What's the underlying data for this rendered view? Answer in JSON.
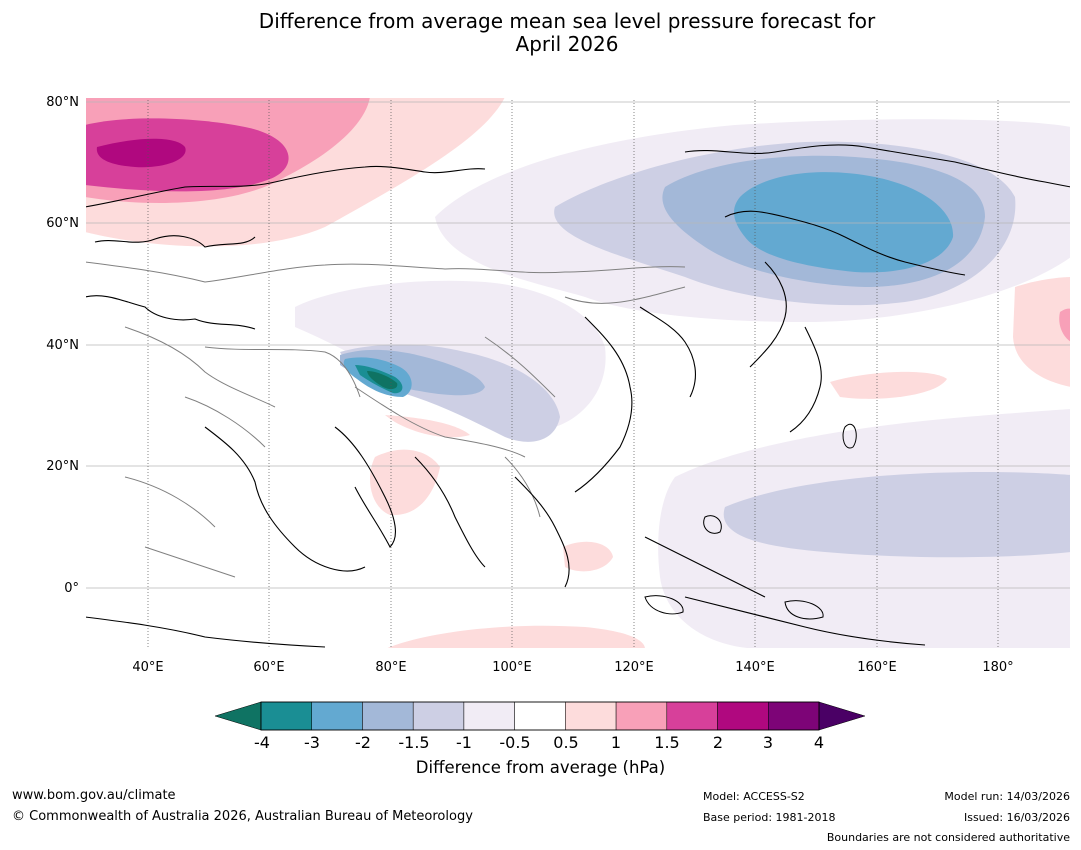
{
  "title_line1": "Difference from average mean sea level pressure forecast for",
  "title_line2": "April 2026",
  "lat_labels": [
    "80°N",
    "60°N",
    "40°N",
    "20°N",
    "0°"
  ],
  "lon_labels": [
    "40°E",
    "60°E",
    "80°E",
    "100°E",
    "120°E",
    "140°E",
    "160°E",
    "180°"
  ],
  "colorbar": {
    "ticks": [
      "-4",
      "-3",
      "-2",
      "-1.5",
      "-1",
      "-0.5",
      "0.5",
      "1",
      "1.5",
      "2",
      "3",
      "4"
    ],
    "colors": [
      "#1a8e94",
      "#63a9d1",
      "#a3b8d8",
      "#cdcfe4",
      "#f1ecf5",
      "#ffffff",
      "#fddcdc",
      "#f8a0b8",
      "#d7409a",
      "#b0087f",
      "#7d0477"
    ],
    "low_extend_color": "#0f7363",
    "high_extend_color": "#4a0065",
    "label": "Difference from average (hPa)"
  },
  "footer": {
    "website": "www.bom.gov.au/climate",
    "copyright": "© Commonwealth of Australia 2026, Australian Bureau of Meteorology",
    "model": "Model: ACCESS-S2",
    "base_period": "Base period: 1981-2018",
    "model_run": "Model run: 14/03/2026",
    "issued": "Issued: 16/03/2026",
    "disclaimer": "Boundaries are not considered authoritative"
  }
}
